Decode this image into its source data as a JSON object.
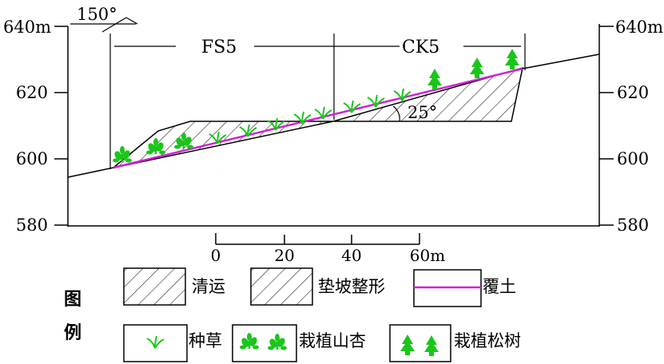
{
  "elevation_axis": {
    "unit_top_label": "640m",
    "left_ticks": [
      "620",
      "600",
      "580"
    ],
    "right_top_label": "640m",
    "right_ticks": [
      "620",
      "600",
      "580"
    ]
  },
  "annotations": {
    "top_angle": "150°",
    "section_left": "FS5",
    "section_right": "CK5",
    "slope_angle": "25°"
  },
  "scale_bar": {
    "ticks": [
      "0",
      "20",
      "40"
    ],
    "end_label": "60m"
  },
  "legend": {
    "title_1": "图",
    "title_2": "例",
    "items": [
      {
        "label": "清运"
      },
      {
        "label": "垫坡整形"
      },
      {
        "label": "覆土"
      },
      {
        "label": "种草"
      },
      {
        "label": "栽植山杏"
      },
      {
        "label": "栽植松树"
      }
    ]
  },
  "colors": {
    "cover_soil_line": "#d01fd6",
    "vegetation": "#19c619",
    "outline": "#000000"
  },
  "icons": [
    "grass-icon",
    "apricot-icon",
    "pine-tree-icon"
  ]
}
